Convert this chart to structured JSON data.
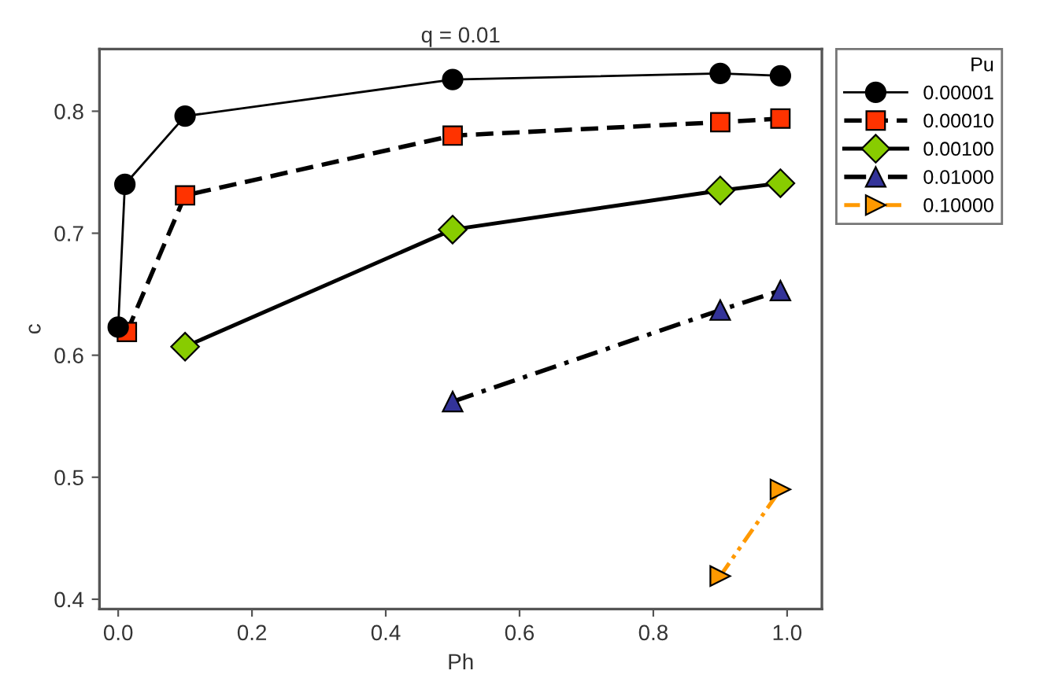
{
  "chart_data": {
    "type": "line",
    "title": "q = 0.01",
    "xlabel": "Ph",
    "ylabel": "c",
    "legend_title": "Pu",
    "legend": "top right",
    "grid": false,
    "xlim": [
      -0.028,
      1.052
    ],
    "xticks": [
      {
        "value": 0,
        "label": "0.0"
      },
      0.2,
      0.4,
      0.6,
      0.8,
      {
        "value": 1,
        "label": "1.0"
      }
    ],
    "ylim": [
      0.392,
      0.851
    ],
    "yticks": [
      0.4,
      0.5,
      0.6,
      0.7,
      0.8
    ],
    "series": [
      {
        "name": "0.00001",
        "color": "#000000",
        "marker": "circle",
        "line_style": "solid",
        "x": [
          0.0,
          0.01,
          0.1,
          0.5,
          0.9,
          0.99
        ],
        "values": [
          0.623,
          0.74,
          0.796,
          0.826,
          0.831,
          0.829
        ]
      },
      {
        "name": "0.00010",
        "color": "#ff3300",
        "marker": "square",
        "line_style": "dashed",
        "x": [
          0.013,
          0.1,
          0.5,
          0.9,
          0.99
        ],
        "values": [
          0.619,
          0.731,
          0.78,
          0.791,
          0.794
        ]
      },
      {
        "name": "0.00100",
        "color": "#88cc00",
        "marker": "diamond",
        "line_style": "solid",
        "x": [
          0.1,
          0.5,
          0.9,
          0.99
        ],
        "values": [
          0.607,
          0.703,
          0.735,
          0.741
        ]
      },
      {
        "name": "0.01000",
        "color": "#333399",
        "marker": "triangle",
        "line_style": "dashdot",
        "x": [
          0.5,
          0.9,
          0.99
        ],
        "values": [
          0.562,
          0.637,
          0.653
        ]
      },
      {
        "name": "0.10000",
        "color": "#ff9900",
        "marker": "triangle_right",
        "line_style": "dashdotdot",
        "x": [
          0.9,
          0.99
        ],
        "values": [
          0.419,
          0.49
        ]
      }
    ]
  }
}
